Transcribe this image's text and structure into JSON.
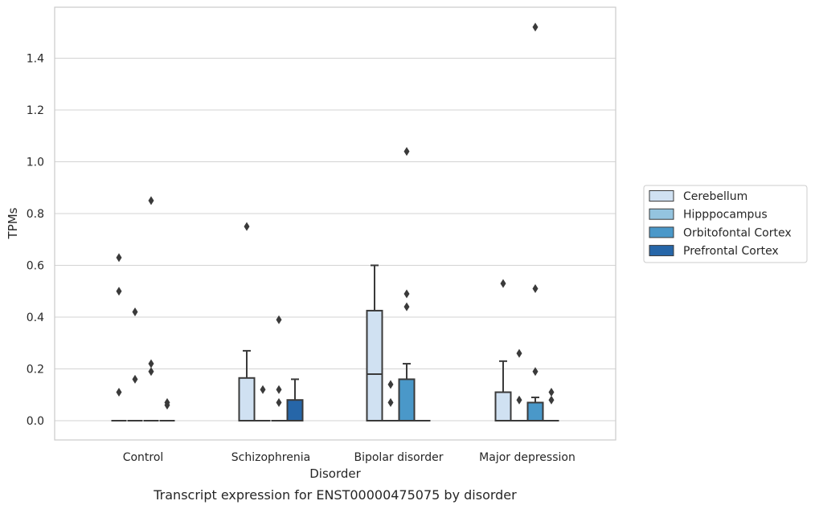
{
  "chart_data": {
    "type": "box",
    "caption": "Transcript expression for ENST00000475075 by disorder",
    "xlabel": "Disorder",
    "ylabel": "TPMs",
    "ylim": [
      -0.07,
      1.6
    ],
    "yticks": [
      0.0,
      0.2,
      0.4,
      0.6,
      0.8,
      1.0,
      1.2,
      1.4
    ],
    "ytick_labels": [
      "0.0",
      "0.2",
      "0.4",
      "0.6",
      "0.8",
      "1.0",
      "1.2",
      "1.4"
    ],
    "grid": "horizontal",
    "legend_position": "right",
    "categories": [
      "Control",
      "Schizophrenia",
      "Bipolar disorder",
      "Major depression"
    ],
    "series": [
      {
        "name": "Cerebellum",
        "color": "#d0e1f2",
        "boxes": [
          {
            "q1": 0,
            "median": 0,
            "q3": 0,
            "whisker_low": 0,
            "whisker_high": 0,
            "outliers": [
              0.63,
              0.5,
              0.11
            ]
          },
          {
            "q1": 0,
            "median": 0,
            "q3": 0.165,
            "whisker_low": 0,
            "whisker_high": 0.27,
            "outliers": [
              0.75
            ]
          },
          {
            "q1": 0,
            "median": 0.18,
            "q3": 0.425,
            "whisker_low": 0,
            "whisker_high": 0.6,
            "outliers": []
          },
          {
            "q1": 0,
            "median": 0,
            "q3": 0.11,
            "whisker_low": 0,
            "whisker_high": 0.23,
            "outliers": [
              0.53
            ]
          }
        ]
      },
      {
        "name": "Hipppocampus",
        "color": "#94c4df",
        "boxes": [
          {
            "q1": 0,
            "median": 0,
            "q3": 0,
            "whisker_low": 0,
            "whisker_high": 0,
            "outliers": [
              0.42,
              0.16
            ]
          },
          {
            "q1": 0,
            "median": 0,
            "q3": 0,
            "whisker_low": 0,
            "whisker_high": 0,
            "outliers": [
              0.12
            ]
          },
          {
            "q1": 0,
            "median": 0,
            "q3": 0,
            "whisker_low": 0,
            "whisker_high": 0,
            "outliers": [
              0.14,
              0.07
            ]
          },
          {
            "q1": 0,
            "median": 0,
            "q3": 0,
            "whisker_low": 0,
            "whisker_high": 0,
            "outliers": [
              0.26,
              0.08
            ]
          }
        ]
      },
      {
        "name": "Orbitofontal Cortex",
        "color": "#4a98c9",
        "boxes": [
          {
            "q1": 0,
            "median": 0,
            "q3": 0,
            "whisker_low": 0,
            "whisker_high": 0,
            "outliers": [
              0.85,
              0.22,
              0.19
            ]
          },
          {
            "q1": 0,
            "median": 0,
            "q3": 0,
            "whisker_low": 0,
            "whisker_high": 0,
            "outliers": [
              0.39,
              0.12,
              0.07
            ]
          },
          {
            "q1": 0,
            "median": 0,
            "q3": 0.16,
            "whisker_low": 0,
            "whisker_high": 0.22,
            "outliers": [
              1.04,
              0.49,
              0.44
            ]
          },
          {
            "q1": 0,
            "median": 0,
            "q3": 0.07,
            "whisker_low": 0,
            "whisker_high": 0.09,
            "outliers": [
              1.52,
              0.51,
              0.19
            ]
          }
        ]
      },
      {
        "name": "Prefrontal Cortex",
        "color": "#2666a8",
        "boxes": [
          {
            "q1": 0,
            "median": 0,
            "q3": 0,
            "whisker_low": 0,
            "whisker_high": 0,
            "outliers": [
              0.07,
              0.06
            ]
          },
          {
            "q1": 0,
            "median": 0,
            "q3": 0.08,
            "whisker_low": 0,
            "whisker_high": 0.16,
            "outliers": []
          },
          {
            "q1": 0,
            "median": 0,
            "q3": 0,
            "whisker_low": 0,
            "whisker_high": 0,
            "outliers": []
          },
          {
            "q1": 0,
            "median": 0,
            "q3": 0,
            "whisker_low": 0,
            "whisker_high": 0,
            "outliers": [
              0.11,
              0.08
            ]
          }
        ]
      }
    ]
  }
}
